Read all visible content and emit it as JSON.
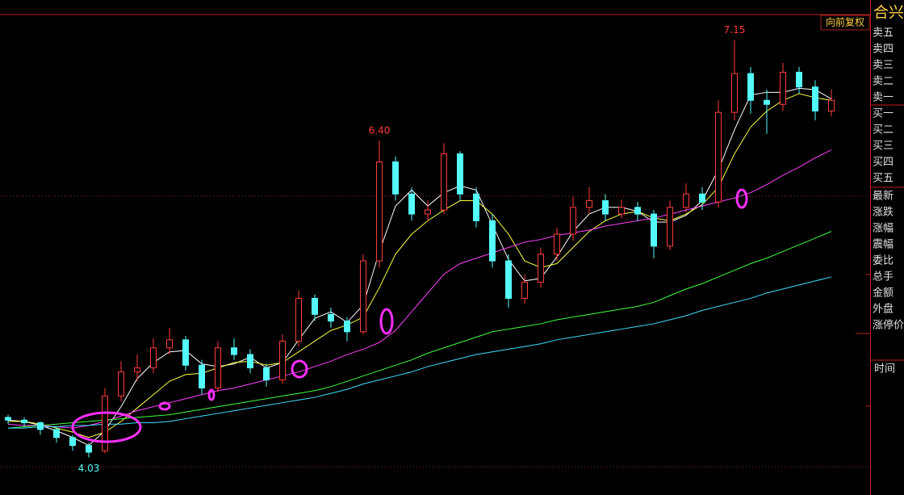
{
  "chart_data": {
    "type": "candlestick",
    "badge": "向前复权",
    "annotations": [
      {
        "text": "7.15",
        "index": 45,
        "at": "high"
      },
      {
        "text": "6.40",
        "index": 23,
        "at": "high"
      },
      {
        "text": "4.03",
        "index": 5,
        "at": "low"
      }
    ],
    "ylim": [
      3.75,
      7.45
    ],
    "up_color": "#ff3c3c",
    "down_color": "#54fcfc",
    "candles": [
      [
        4.33,
        4.35,
        4.28,
        4.31
      ],
      [
        4.31,
        4.33,
        4.26,
        4.29
      ],
      [
        4.29,
        4.3,
        4.2,
        4.24
      ],
      [
        4.24,
        4.26,
        4.14,
        4.18
      ],
      [
        4.18,
        4.2,
        4.08,
        4.12
      ],
      [
        4.12,
        4.14,
        4.03,
        4.07
      ],
      [
        4.08,
        4.55,
        4.06,
        4.49
      ],
      [
        4.49,
        4.75,
        4.45,
        4.67
      ],
      [
        4.67,
        4.8,
        4.6,
        4.7
      ],
      [
        4.7,
        4.92,
        4.66,
        4.85
      ],
      [
        4.85,
        5.0,
        4.8,
        4.91
      ],
      [
        4.91,
        4.94,
        4.68,
        4.72
      ],
      [
        4.72,
        4.76,
        4.5,
        4.55
      ],
      [
        4.55,
        4.9,
        4.52,
        4.85
      ],
      [
        4.85,
        4.92,
        4.76,
        4.8
      ],
      [
        4.8,
        4.84,
        4.66,
        4.7
      ],
      [
        4.7,
        4.73,
        4.56,
        4.61
      ],
      [
        4.61,
        4.95,
        4.58,
        4.9
      ],
      [
        4.9,
        5.28,
        4.86,
        5.22
      ],
      [
        5.22,
        5.25,
        5.05,
        5.1
      ],
      [
        5.1,
        5.15,
        5.0,
        5.05
      ],
      [
        5.05,
        5.08,
        4.9,
        4.97
      ],
      [
        4.97,
        5.55,
        4.95,
        5.5
      ],
      [
        5.5,
        6.4,
        5.45,
        6.24
      ],
      [
        6.24,
        6.28,
        5.95,
        6.0
      ],
      [
        6.0,
        6.05,
        5.8,
        5.85
      ],
      [
        5.85,
        5.95,
        5.8,
        5.88
      ],
      [
        5.88,
        6.38,
        5.85,
        6.3
      ],
      [
        6.3,
        6.32,
        5.95,
        6.0
      ],
      [
        6.0,
        6.05,
        5.75,
        5.8
      ],
      [
        5.8,
        5.85,
        5.45,
        5.5
      ],
      [
        5.5,
        5.55,
        5.15,
        5.22
      ],
      [
        5.22,
        5.4,
        5.18,
        5.34
      ],
      [
        5.34,
        5.6,
        5.3,
        5.55
      ],
      [
        5.55,
        5.75,
        5.5,
        5.7
      ],
      [
        5.7,
        5.98,
        5.65,
        5.9
      ],
      [
        5.9,
        6.05,
        5.85,
        5.95
      ],
      [
        5.95,
        6.0,
        5.8,
        5.85
      ],
      [
        5.85,
        5.96,
        5.82,
        5.9
      ],
      [
        5.9,
        5.94,
        5.8,
        5.85
      ],
      [
        5.85,
        5.88,
        5.52,
        5.61
      ],
      [
        5.61,
        5.95,
        5.58,
        5.9
      ],
      [
        5.9,
        6.08,
        5.86,
        6.0
      ],
      [
        6.0,
        6.05,
        5.88,
        5.94
      ],
      [
        5.94,
        6.7,
        5.9,
        6.61
      ],
      [
        6.61,
        7.15,
        6.55,
        6.9
      ],
      [
        6.9,
        6.95,
        6.6,
        6.7
      ],
      [
        6.7,
        6.78,
        6.45,
        6.67
      ],
      [
        6.67,
        6.98,
        6.62,
        6.91
      ],
      [
        6.91,
        6.95,
        6.75,
        6.8
      ],
      [
        6.8,
        6.85,
        6.55,
        6.62
      ],
      [
        6.62,
        6.78,
        6.58,
        6.7
      ]
    ],
    "series": [
      {
        "color": "#ffffff",
        "values": [
          4.31,
          4.3,
          4.27,
          4.23,
          4.18,
          4.12,
          4.23,
          4.41,
          4.62,
          4.74,
          4.82,
          4.83,
          4.73,
          4.71,
          4.73,
          4.78,
          4.7,
          4.74,
          4.91,
          5.07,
          5.12,
          5.04,
          5.17,
          5.57,
          5.91,
          6.03,
          5.91,
          6.01,
          6.06,
          6.03,
          5.77,
          5.51,
          5.35,
          5.37,
          5.53,
          5.72,
          5.85,
          5.9,
          5.9,
          5.87,
          5.79,
          5.79,
          5.84,
          5.95,
          6.18,
          6.48,
          6.74,
          6.76,
          6.76,
          6.79,
          6.78,
          6.71
        ]
      },
      {
        "color": "#ffff40",
        "values": [
          4.3,
          4.3,
          4.28,
          4.25,
          4.22,
          4.18,
          4.22,
          4.3,
          4.4,
          4.5,
          4.6,
          4.65,
          4.66,
          4.7,
          4.74,
          4.75,
          4.72,
          4.74,
          4.82,
          4.9,
          4.98,
          5.02,
          5.08,
          5.3,
          5.55,
          5.7,
          5.8,
          5.88,
          5.95,
          5.95,
          5.85,
          5.7,
          5.5,
          5.45,
          5.48,
          5.6,
          5.72,
          5.8,
          5.85,
          5.87,
          5.82,
          5.8,
          5.85,
          5.92,
          6.05,
          6.3,
          6.5,
          6.62,
          6.7,
          6.75,
          6.72,
          6.7
        ]
      },
      {
        "color": "#ff40ff",
        "values": [
          4.28,
          4.27,
          4.27,
          4.26,
          4.25,
          4.27,
          4.3,
          4.34,
          4.38,
          4.41,
          4.44,
          4.47,
          4.5,
          4.53,
          4.55,
          4.58,
          4.61,
          4.64,
          4.67,
          4.71,
          4.75,
          4.8,
          4.84,
          4.89,
          4.98,
          5.12,
          5.26,
          5.4,
          5.48,
          5.52,
          5.56,
          5.6,
          5.64,
          5.66,
          5.69,
          5.71,
          5.73,
          5.76,
          5.78,
          5.8,
          5.82,
          5.85,
          5.88,
          5.91,
          5.94,
          5.97,
          6.01,
          6.07,
          6.14,
          6.2,
          6.27,
          6.33
        ]
      },
      {
        "color": "#40ff40",
        "values": [
          4.25,
          4.26,
          4.27,
          4.28,
          4.29,
          4.3,
          4.31,
          4.32,
          4.33,
          4.34,
          4.35,
          4.37,
          4.39,
          4.41,
          4.43,
          4.45,
          4.47,
          4.49,
          4.51,
          4.53,
          4.56,
          4.6,
          4.64,
          4.68,
          4.72,
          4.76,
          4.81,
          4.85,
          4.89,
          4.93,
          4.97,
          4.99,
          5.01,
          5.03,
          5.06,
          5.08,
          5.1,
          5.12,
          5.14,
          5.16,
          5.19,
          5.24,
          5.29,
          5.33,
          5.38,
          5.43,
          5.48,
          5.52,
          5.57,
          5.62,
          5.67,
          5.72
        ]
      },
      {
        "color": "#40e0ff",
        "values": [
          4.25,
          4.25,
          4.26,
          4.26,
          4.27,
          4.27,
          4.28,
          4.28,
          4.29,
          4.29,
          4.3,
          4.32,
          4.34,
          4.36,
          4.38,
          4.4,
          4.42,
          4.44,
          4.46,
          4.48,
          4.51,
          4.54,
          4.58,
          4.61,
          4.64,
          4.67,
          4.71,
          4.74,
          4.77,
          4.8,
          4.82,
          4.84,
          4.86,
          4.88,
          4.91,
          4.93,
          4.95,
          4.97,
          4.99,
          5.01,
          5.03,
          5.06,
          5.09,
          5.13,
          5.16,
          5.19,
          5.22,
          5.26,
          5.29,
          5.32,
          5.35,
          5.38
        ]
      }
    ]
  },
  "side_panel": {
    "name": "合兴",
    "rows": [
      "卖五",
      "卖四",
      "卖三",
      "卖二",
      "卖一",
      "买一",
      "买二",
      "买三",
      "买四",
      "买五",
      "最新",
      "涨跌",
      "涨幅",
      "震幅",
      "委比",
      "总手",
      "金额",
      "外盘",
      "涨停价"
    ],
    "time": "时间"
  }
}
